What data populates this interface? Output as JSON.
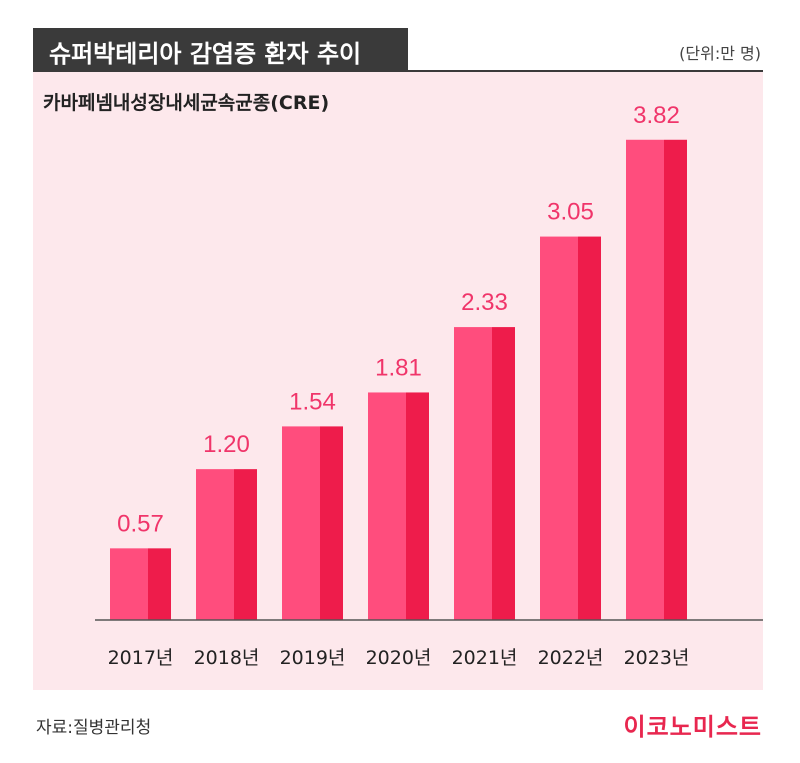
{
  "header": {
    "title": "슈퍼박테리아 감염증 환자 추이",
    "unit": "(단위:만 명)"
  },
  "subtitle": "카바페넴내성장내세균속균종(CRE)",
  "footer": {
    "source": "자료:질병관리청",
    "brand": "이코노미스트"
  },
  "colors": {
    "bar_face": "#ff4d7d",
    "bar_side": "#ee1c4b",
    "value_label": "#f0356a",
    "panel": "#fde8ec",
    "header": "#3a3a3a"
  },
  "chart_data": {
    "type": "bar",
    "title": "슈퍼박테리아 감염증 환자 추이",
    "subtitle": "카바페넴내성장내세균속균종(CRE)",
    "unit": "(단위:만 명)",
    "categories": [
      "2017년",
      "2018년",
      "2019년",
      "2020년",
      "2021년",
      "2022년",
      "2023년"
    ],
    "values": [
      0.57,
      1.2,
      1.54,
      1.81,
      2.33,
      3.05,
      3.82
    ],
    "value_labels": [
      "0.57",
      "1.20",
      "1.54",
      "1.81",
      "2.33",
      "3.05",
      "3.82"
    ],
    "ylim": [
      0,
      4.2
    ],
    "grid": false,
    "legend": "none"
  }
}
